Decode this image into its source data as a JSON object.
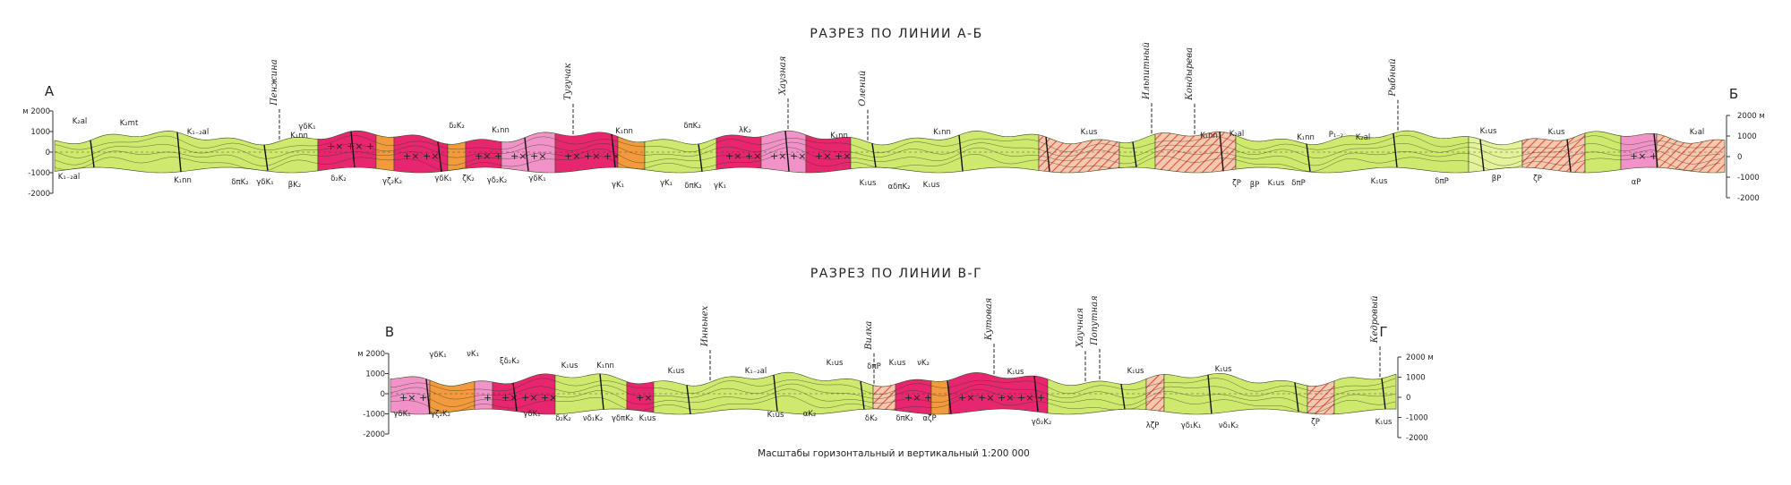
{
  "sections": [
    {
      "title": "РАЗРЕЗ ПО ЛИНИИ А-Б",
      "start": "А",
      "end": "Б",
      "left_axis": [
        "м 2000",
        "1000",
        "0",
        "-1000",
        "-2000"
      ],
      "right_axis": [
        "2000 м",
        "1000",
        "0",
        "-1000",
        "-2000"
      ],
      "rivers": [
        "Пенжина",
        "Тугучак",
        "Хаузная",
        "Олений",
        "Ильпитный",
        "Кондырева",
        "Рыбный"
      ],
      "formations": [
        "K₂al",
        "K₂mt",
        "K₁₋₂al",
        "K₁nn",
        "γδK₁",
        "δ₂K₂",
        "K₁nn",
        "K₁nn",
        "δπK₂",
        "λK₂",
        "K₁nn",
        "K₁nn",
        "K₁us",
        "K₁nn",
        "K₂al",
        "K₁nn",
        "P₁₋₂",
        "K₂al",
        "K₁us",
        "K₁us",
        "K₂al",
        "K₁₋₂al",
        "K₁nn",
        "δπK₂",
        "γδK₁",
        "βK₂",
        "δ₂K₂",
        "γζ₂K₂",
        "γδK₁",
        "ζK₂",
        "γδ₂K₂",
        "γδK₁",
        "γK₁",
        "γK₁",
        "δπK₂",
        "γK₁",
        "K₁us",
        "αδπK₂",
        "K₁us",
        "ζP",
        "βP",
        "K₁us",
        "δπP",
        "K₁us",
        "δπP",
        "βP",
        "ζP",
        "αP"
      ]
    },
    {
      "title": "РАЗРЕЗ ПО ЛИНИИ В-Г",
      "start": "В",
      "end": "Г",
      "left_axis": [
        "м 2000",
        "1000",
        "0",
        "-1000",
        "-2000"
      ],
      "right_axis": [
        "2000 м",
        "1000",
        "0",
        "-1000",
        "-2000"
      ],
      "rivers": [
        "Инньнех",
        "Вилка",
        "Кутовая",
        "Хаучная",
        "Попутная",
        "Кедровый"
      ],
      "formations": [
        "γδK₁",
        "νK₁",
        "ξδ₂K₂",
        "K₁us",
        "K₁nn",
        "K₁us",
        "K₁₋₂al",
        "K₁us",
        "δπP",
        "K₁us",
        "νK₂",
        "K₁us",
        "K₁us",
        "K₁us",
        "γδK₁",
        "γζ₂K₂",
        "γδK₁",
        "δ₂K₂",
        "νδ₁K₂",
        "γδπK₂",
        "K₁us",
        "K₁us",
        "αK₂",
        "δK₂",
        "δπK₂",
        "αζP",
        "γδ₂K₂",
        "λζP",
        "γδ₁K₁",
        "νδ₁K₂",
        "ζP",
        "K₁us"
      ]
    }
  ],
  "scale_note": "Масштабы горизонтальный и вертикальный 1:200 000"
}
